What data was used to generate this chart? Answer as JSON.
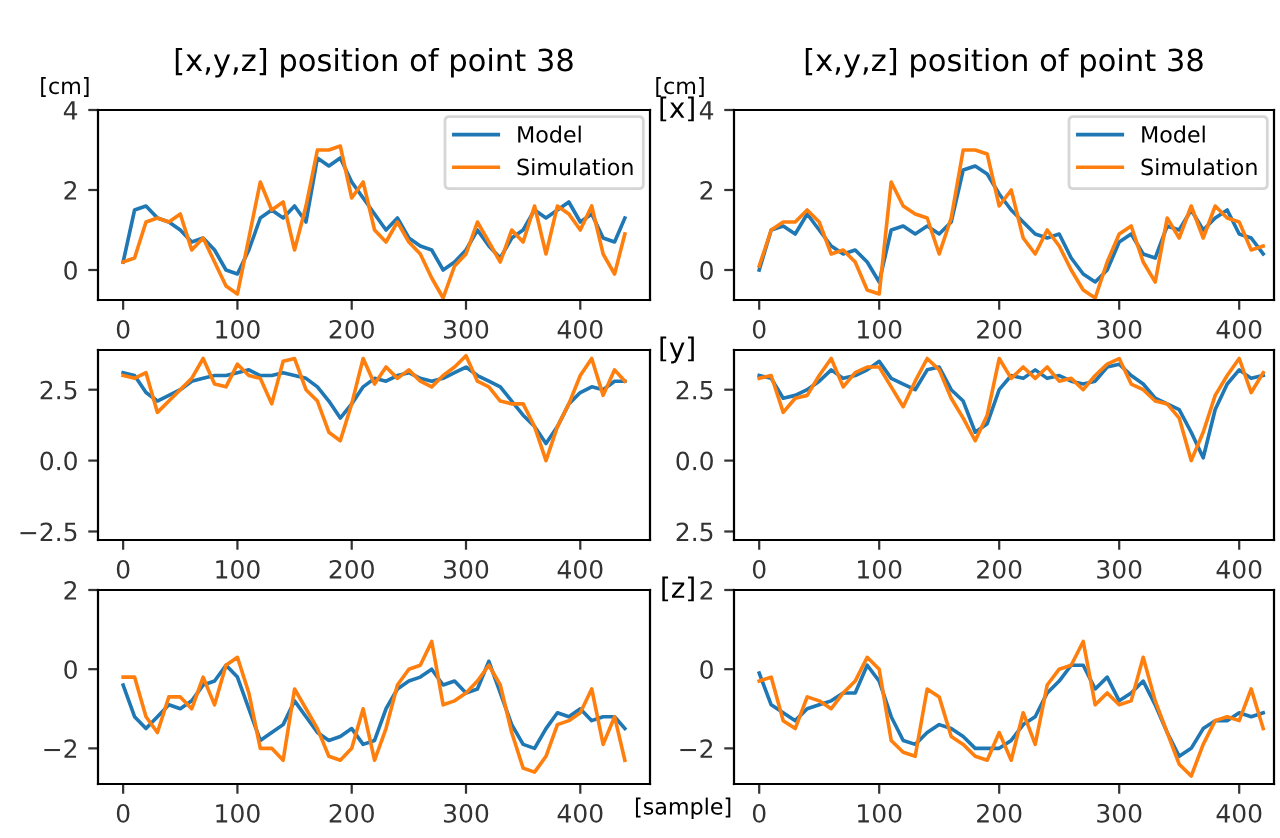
{
  "chart_data": [
    {
      "type": "line",
      "title": "[x,y,z] position of point 38",
      "ylabel": "[cm]",
      "legend": "top right",
      "x": [
        0,
        10,
        20,
        30,
        40,
        50,
        60,
        70,
        80,
        90,
        100,
        110,
        120,
        130,
        140,
        150,
        160,
        170,
        180,
        190,
        200,
        210,
        220,
        230,
        240,
        250,
        260,
        270,
        280,
        290,
        300,
        310,
        320,
        330,
        340,
        350,
        360,
        370,
        380,
        390,
        400,
        410,
        420,
        430,
        439
      ],
      "xlim": [
        -22,
        461
      ],
      "xticks": [
        0,
        100,
        200,
        300,
        400
      ],
      "ylim": [
        -0.75,
        4
      ],
      "yticks": [
        0,
        2,
        4
      ],
      "series": [
        {
          "name": "Model",
          "color": "#1f77b4",
          "values": [
            0.2,
            1.5,
            1.6,
            1.3,
            1.2,
            1.0,
            0.7,
            0.8,
            0.5,
            0.0,
            -0.1,
            0.5,
            1.3,
            1.5,
            1.3,
            1.6,
            1.2,
            2.8,
            2.6,
            2.8,
            2.2,
            1.8,
            1.4,
            1.0,
            1.3,
            0.8,
            0.6,
            0.5,
            0.0,
            0.2,
            0.5,
            1.0,
            0.6,
            0.3,
            0.8,
            1.0,
            1.5,
            1.3,
            1.5,
            1.7,
            1.2,
            1.4,
            0.8,
            0.7,
            1.3
          ]
        },
        {
          "name": "Simulation",
          "color": "#ff7f0e",
          "values": [
            0.2,
            0.3,
            1.2,
            1.3,
            1.2,
            1.4,
            0.5,
            0.8,
            0.2,
            -0.4,
            -0.6,
            0.8,
            2.2,
            1.5,
            1.7,
            0.5,
            1.6,
            3.0,
            3.0,
            3.1,
            1.8,
            2.2,
            1.0,
            0.7,
            1.2,
            0.7,
            0.4,
            -0.2,
            -0.7,
            0.1,
            0.4,
            1.2,
            0.7,
            0.2,
            1.0,
            0.7,
            1.6,
            0.4,
            1.6,
            1.4,
            1.0,
            1.6,
            0.4,
            -0.1,
            0.9
          ]
        }
      ]
    },
    {
      "type": "line",
      "title": "[x,y,z] position of point 38",
      "ylabel": "[cm]",
      "legend": "top right",
      "annotations": [
        "[x]"
      ],
      "x": [
        0,
        10,
        20,
        30,
        40,
        50,
        60,
        70,
        80,
        90,
        100,
        110,
        120,
        130,
        140,
        150,
        160,
        170,
        180,
        190,
        200,
        210,
        220,
        230,
        240,
        250,
        260,
        270,
        280,
        290,
        300,
        310,
        320,
        330,
        340,
        350,
        360,
        370,
        380,
        390,
        400,
        410,
        420
      ],
      "xlim": [
        -21,
        429
      ],
      "xticks": [
        0,
        100,
        200,
        300,
        400
      ],
      "ylim": [
        -0.75,
        4
      ],
      "yticks": [
        0,
        2,
        4
      ],
      "series": [
        {
          "name": "Model",
          "color": "#1f77b4",
          "values": [
            0.0,
            1.0,
            1.1,
            0.9,
            1.4,
            1.0,
            0.6,
            0.4,
            0.5,
            0.2,
            -0.3,
            1.0,
            1.1,
            0.9,
            1.1,
            0.9,
            1.2,
            2.5,
            2.6,
            2.4,
            1.9,
            1.5,
            1.2,
            0.9,
            0.8,
            0.9,
            0.3,
            -0.1,
            -0.3,
            0.0,
            0.7,
            0.9,
            0.4,
            0.3,
            1.1,
            1.0,
            1.5,
            1.0,
            1.3,
            1.5,
            0.9,
            0.8,
            0.4
          ]
        },
        {
          "name": "Simulation",
          "color": "#ff7f0e",
          "values": [
            0.1,
            1.0,
            1.2,
            1.2,
            1.5,
            1.2,
            0.4,
            0.5,
            0.2,
            -0.5,
            -0.6,
            2.2,
            1.6,
            1.4,
            1.3,
            0.4,
            1.3,
            3.0,
            3.0,
            2.9,
            1.6,
            2.0,
            0.8,
            0.4,
            1.0,
            0.6,
            0.0,
            -0.5,
            -0.7,
            0.2,
            0.9,
            1.1,
            0.2,
            -0.3,
            1.3,
            0.8,
            1.6,
            0.8,
            1.6,
            1.3,
            1.2,
            0.5,
            0.6
          ]
        }
      ]
    },
    {
      "type": "line",
      "x": [
        0,
        10,
        20,
        30,
        40,
        50,
        60,
        70,
        80,
        90,
        100,
        110,
        120,
        130,
        140,
        150,
        160,
        170,
        180,
        190,
        200,
        210,
        220,
        230,
        240,
        250,
        260,
        270,
        280,
        290,
        300,
        310,
        320,
        330,
        340,
        350,
        360,
        370,
        380,
        390,
        400,
        410,
        420,
        430,
        439
      ],
      "xlim": [
        -22,
        461
      ],
      "xticks": [
        0,
        100,
        200,
        300,
        400
      ],
      "ylim": [
        -2.8,
        3.9
      ],
      "yticks": [
        {
          "value": -2.5,
          "label": "−2.5"
        },
        {
          "value": 0,
          "label": "0.0"
        },
        {
          "value": 2.5,
          "label": "2.5"
        }
      ],
      "series": [
        {
          "color": "#1f77b4",
          "values": [
            3.1,
            3.0,
            2.4,
            2.1,
            2.3,
            2.5,
            2.8,
            2.9,
            3.0,
            3.0,
            3.1,
            3.2,
            3.0,
            3.0,
            3.1,
            3.0,
            2.9,
            2.6,
            2.1,
            1.5,
            2.0,
            2.6,
            2.9,
            2.8,
            3.0,
            3.1,
            2.9,
            2.8,
            2.9,
            3.1,
            3.3,
            3.0,
            2.8,
            2.6,
            2.1,
            1.6,
            1.2,
            0.6,
            1.2,
            2.0,
            2.4,
            2.6,
            2.5,
            2.8,
            2.8
          ]
        },
        {
          "color": "#ff7f0e",
          "values": [
            3.0,
            2.9,
            3.1,
            1.7,
            2.1,
            2.5,
            2.9,
            3.6,
            2.7,
            2.6,
            3.4,
            3.0,
            2.9,
            2.0,
            3.5,
            3.6,
            2.5,
            2.1,
            1.0,
            0.7,
            2.0,
            3.6,
            2.7,
            3.3,
            2.9,
            3.2,
            2.8,
            2.6,
            3.0,
            3.3,
            3.7,
            2.8,
            2.6,
            2.1,
            2.0,
            2.0,
            1.2,
            0.0,
            1.2,
            2.0,
            3.0,
            3.6,
            2.3,
            3.2,
            2.8
          ]
        }
      ]
    },
    {
      "type": "line",
      "annotations": [
        "[y]"
      ],
      "x": [
        0,
        10,
        20,
        30,
        40,
        50,
        60,
        70,
        80,
        90,
        100,
        110,
        120,
        130,
        140,
        150,
        160,
        170,
        180,
        190,
        200,
        210,
        220,
        230,
        240,
        250,
        260,
        270,
        280,
        290,
        300,
        310,
        320,
        330,
        340,
        350,
        360,
        370,
        380,
        390,
        400,
        410,
        420
      ],
      "xlim": [
        -21,
        429
      ],
      "xticks": [
        0,
        100,
        200,
        300,
        400
      ],
      "ylim": [
        -2.8,
        3.9
      ],
      "yticks": [
        {
          "value": -2.5,
          "label": "2.5"
        },
        {
          "value": 0,
          "label": "0.0"
        },
        {
          "value": 2.5,
          "label": "2.5"
        }
      ],
      "series": [
        {
          "color": "#1f77b4",
          "values": [
            3.0,
            2.9,
            2.2,
            2.3,
            2.5,
            2.8,
            3.2,
            2.9,
            3.0,
            3.2,
            3.5,
            2.9,
            2.7,
            2.5,
            3.2,
            3.3,
            2.5,
            2.1,
            1.0,
            1.3,
            2.5,
            3.0,
            2.9,
            3.2,
            2.9,
            3.0,
            2.8,
            2.7,
            2.8,
            3.3,
            3.4,
            3.0,
            2.7,
            2.2,
            2.0,
            1.8,
            1.0,
            0.1,
            1.8,
            2.7,
            3.2,
            2.9,
            3.0
          ]
        },
        {
          "color": "#ff7f0e",
          "values": [
            2.9,
            3.0,
            1.7,
            2.2,
            2.3,
            3.0,
            3.6,
            2.6,
            3.1,
            3.3,
            3.3,
            2.6,
            1.9,
            2.8,
            3.6,
            3.2,
            2.2,
            1.5,
            0.7,
            1.6,
            3.6,
            2.9,
            3.3,
            2.9,
            3.3,
            2.8,
            2.9,
            2.5,
            3.0,
            3.4,
            3.6,
            2.7,
            2.5,
            2.1,
            2.0,
            1.5,
            0.0,
            1.0,
            2.3,
            3.0,
            3.6,
            2.4,
            3.1
          ]
        }
      ]
    },
    {
      "type": "line",
      "xlabel": "[sample]",
      "x": [
        0,
        10,
        20,
        30,
        40,
        50,
        60,
        70,
        80,
        90,
        100,
        110,
        120,
        130,
        140,
        150,
        160,
        170,
        180,
        190,
        200,
        210,
        220,
        230,
        240,
        250,
        260,
        270,
        280,
        290,
        300,
        310,
        320,
        330,
        340,
        350,
        360,
        370,
        380,
        390,
        400,
        410,
        420,
        430,
        439
      ],
      "xlim": [
        -22,
        461
      ],
      "xticks": [
        0,
        100,
        200,
        300,
        400
      ],
      "ylim": [
        -2.9,
        2
      ],
      "yticks": [
        {
          "value": -2,
          "label": "−2"
        },
        0,
        2
      ],
      "series": [
        {
          "color": "#1f77b4",
          "values": [
            -0.4,
            -1.2,
            -1.5,
            -1.2,
            -0.9,
            -1.0,
            -0.8,
            -0.4,
            -0.3,
            0.1,
            -0.2,
            -1.0,
            -1.8,
            -1.6,
            -1.4,
            -0.8,
            -1.2,
            -1.6,
            -1.8,
            -1.7,
            -1.5,
            -1.9,
            -1.8,
            -1.0,
            -0.5,
            -0.3,
            -0.2,
            0.0,
            -0.4,
            -0.3,
            -0.6,
            -0.5,
            0.2,
            -0.6,
            -1.4,
            -1.9,
            -2.0,
            -1.5,
            -1.1,
            -1.2,
            -1.0,
            -1.3,
            -1.2,
            -1.2,
            -1.5
          ]
        },
        {
          "color": "#ff7f0e",
          "values": [
            -0.2,
            -0.2,
            -1.2,
            -1.6,
            -0.7,
            -0.7,
            -1.0,
            -0.2,
            -0.9,
            0.1,
            0.3,
            -0.6,
            -2.0,
            -2.0,
            -2.3,
            -0.5,
            -1.0,
            -1.5,
            -2.2,
            -2.3,
            -2.0,
            -1.0,
            -2.3,
            -1.5,
            -0.4,
            0.0,
            0.1,
            0.7,
            -0.9,
            -0.8,
            -0.6,
            -0.3,
            0.1,
            -0.4,
            -1.6,
            -2.5,
            -2.6,
            -2.2,
            -1.4,
            -1.3,
            -1.1,
            -0.5,
            -1.9,
            -1.2,
            -2.3
          ]
        }
      ]
    },
    {
      "type": "line",
      "annotations": [
        "[z]"
      ],
      "x": [
        0,
        10,
        20,
        30,
        40,
        50,
        60,
        70,
        80,
        90,
        100,
        110,
        120,
        130,
        140,
        150,
        160,
        170,
        180,
        190,
        200,
        210,
        220,
        230,
        240,
        250,
        260,
        270,
        280,
        290,
        300,
        310,
        320,
        330,
        340,
        350,
        360,
        370,
        380,
        390,
        400,
        410,
        420
      ],
      "xlim": [
        -21,
        429
      ],
      "xticks": [
        0,
        100,
        200,
        300,
        400
      ],
      "ylim": [
        -2.9,
        2
      ],
      "yticks": [
        {
          "value": -2,
          "label": "−2"
        },
        0,
        2
      ],
      "series": [
        {
          "color": "#1f77b4",
          "values": [
            -0.1,
            -0.9,
            -1.1,
            -1.3,
            -1.0,
            -0.9,
            -0.8,
            -0.6,
            -0.6,
            0.1,
            -0.3,
            -1.2,
            -1.8,
            -1.9,
            -1.6,
            -1.4,
            -1.5,
            -1.7,
            -2.0,
            -2.0,
            -2.0,
            -1.8,
            -1.4,
            -1.2,
            -0.6,
            -0.3,
            0.1,
            0.1,
            -0.5,
            -0.2,
            -0.8,
            -0.6,
            -0.3,
            -0.9,
            -1.6,
            -2.2,
            -2.0,
            -1.5,
            -1.3,
            -1.3,
            -1.1,
            -1.2,
            -1.1
          ]
        },
        {
          "color": "#ff7f0e",
          "values": [
            -0.3,
            -0.2,
            -1.3,
            -1.5,
            -0.7,
            -0.8,
            -1.0,
            -0.6,
            -0.3,
            0.3,
            0.0,
            -1.8,
            -2.1,
            -2.2,
            -0.5,
            -0.7,
            -1.7,
            -1.9,
            -2.2,
            -2.3,
            -1.6,
            -2.3,
            -1.1,
            -1.9,
            -0.4,
            0.0,
            0.1,
            0.7,
            -0.9,
            -0.6,
            -0.9,
            -0.8,
            0.3,
            -0.8,
            -1.6,
            -2.4,
            -2.7,
            -1.9,
            -1.3,
            -1.2,
            -1.3,
            -0.5,
            -1.5
          ]
        }
      ]
    }
  ]
}
